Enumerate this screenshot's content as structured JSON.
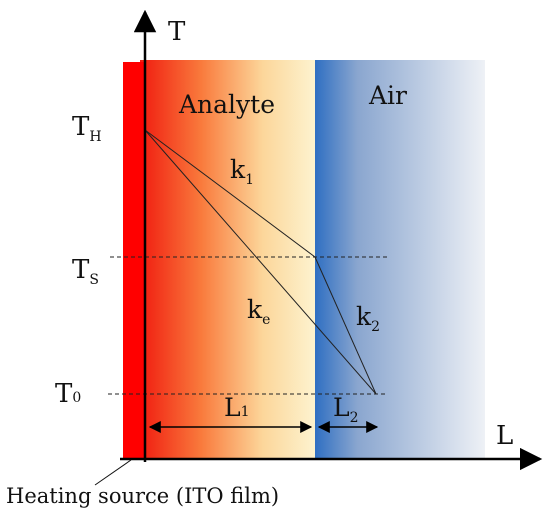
{
  "axes": {
    "y_label": "T",
    "x_label": "L"
  },
  "regions": {
    "analyte_label": "Analyte",
    "air_label": "Air"
  },
  "temperatures": {
    "th_main": "T",
    "th_sub": "H",
    "ts_main": "T",
    "ts_sub": "S",
    "t0_main": "T",
    "t0_sub": "0"
  },
  "conductivities": {
    "k1_main": "k",
    "k1_sub": "1",
    "ke_main": "k",
    "ke_sub": "e",
    "k2_main": "k",
    "k2_sub": "2"
  },
  "lengths": {
    "l1_main": "L",
    "l1_sub": "1",
    "l2_main": "L",
    "l2_sub": "2"
  },
  "caption": "Heating source (ITO film)",
  "colors": {
    "heater": "#ff0000",
    "analyte_start": "#f01c10",
    "analyte_end": "#fdf3cf",
    "air_start": "#2f6fc2",
    "air_end": "#eef1f6",
    "axis": "#000000"
  }
}
